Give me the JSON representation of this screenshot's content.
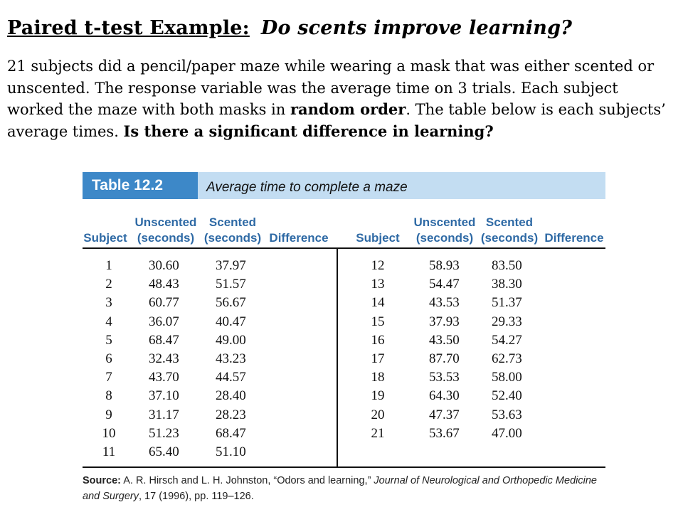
{
  "heading": {
    "label": "Paired t-test Example:",
    "question": "Do scents improve learning?"
  },
  "intro": {
    "text1": "21 subjects did a pencil/paper maze while wearing a mask that was either scented or unscented.  The response variable was the average time on 3 trials.  Each subject worked the maze with both masks in ",
    "bold1": "random order",
    "text2": ".  The table below is each subjects’ average times. ",
    "bold2": "Is there a significant difference in learning?"
  },
  "table": {
    "badge": "Table 12.2",
    "caption": "Average time to complete a maze",
    "headers": {
      "subject": "Subject",
      "unscented_line1": "Unscented",
      "unscented_line2": "(seconds)",
      "scented_line1": "Scented",
      "scented_line2": "(seconds)",
      "difference": "Difference"
    },
    "left_rows": [
      {
        "subject": "1",
        "unscented": "30.60",
        "scented": "37.97"
      },
      {
        "subject": "2",
        "unscented": "48.43",
        "scented": "51.57"
      },
      {
        "subject": "3",
        "unscented": "60.77",
        "scented": "56.67"
      },
      {
        "subject": "4",
        "unscented": "36.07",
        "scented": "40.47"
      },
      {
        "subject": "5",
        "unscented": "68.47",
        "scented": "49.00"
      },
      {
        "subject": "6",
        "unscented": "32.43",
        "scented": "43.23"
      },
      {
        "subject": "7",
        "unscented": "43.70",
        "scented": "44.57"
      },
      {
        "subject": "8",
        "unscented": "37.10",
        "scented": "28.40"
      },
      {
        "subject": "9",
        "unscented": "31.17",
        "scented": "28.23"
      },
      {
        "subject": "10",
        "unscented": "51.23",
        "scented": "68.47"
      },
      {
        "subject": "11",
        "unscented": "65.40",
        "scented": "51.10"
      }
    ],
    "right_rows": [
      {
        "subject": "12",
        "unscented": "58.93",
        "scented": "83.50"
      },
      {
        "subject": "13",
        "unscented": "54.47",
        "scented": "38.30"
      },
      {
        "subject": "14",
        "unscented": "43.53",
        "scented": "51.37"
      },
      {
        "subject": "15",
        "unscented": "37.93",
        "scented": "29.33"
      },
      {
        "subject": "16",
        "unscented": "43.50",
        "scented": "54.27"
      },
      {
        "subject": "17",
        "unscented": "87.70",
        "scented": "62.73"
      },
      {
        "subject": "18",
        "unscented": "53.53",
        "scented": "58.00"
      },
      {
        "subject": "19",
        "unscented": "64.30",
        "scented": "52.40"
      },
      {
        "subject": "20",
        "unscented": "47.37",
        "scented": "53.63"
      },
      {
        "subject": "21",
        "unscented": "53.67",
        "scented": "47.00"
      }
    ],
    "source": {
      "label": "Source:",
      "authors": " A. R. Hirsch and L. H. Johnston, “Odors and learning,” ",
      "journal": "Journal of Neurological and Orthopedic Medicine and Surgery",
      "citation": ", 17 (1996), pp. 119–126."
    }
  },
  "colors": {
    "badge_bg": "#3d88c8",
    "caption_bar_bg": "#c3ddf2",
    "header_text": "#2f6aa5"
  }
}
